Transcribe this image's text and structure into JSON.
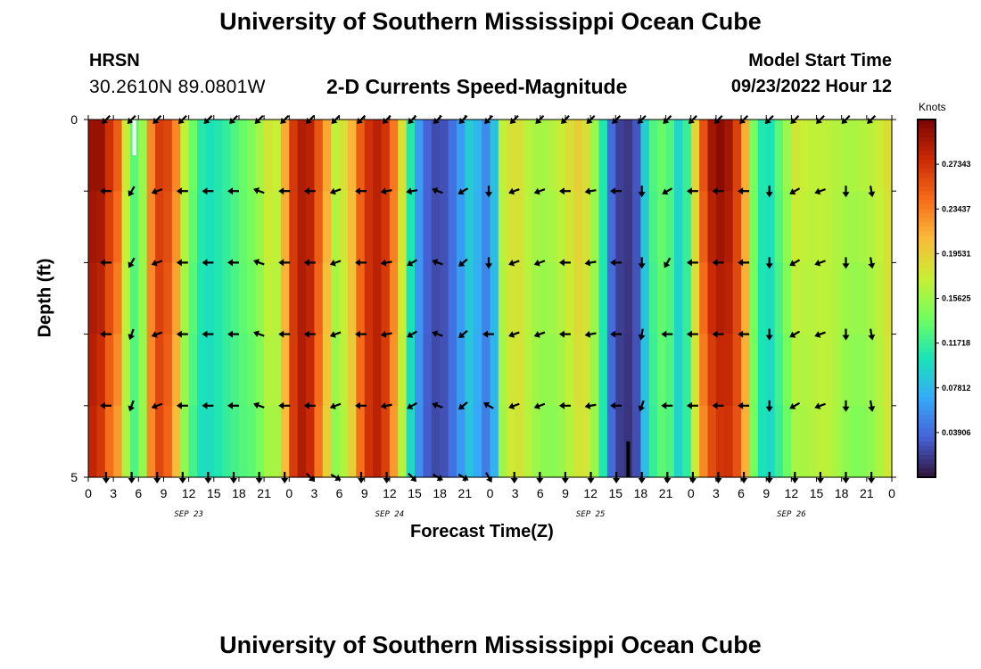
{
  "header": {
    "title": "University of Southern Mississippi Ocean Cube",
    "station": "HRSN",
    "coords": "30.2610N  89.0801W",
    "subtitle": "2-D Currents Speed-Magnitude",
    "start_label": "Model Start Time",
    "start_value": "09/23/2022 Hour 12"
  },
  "footer": {
    "title": "University of Southern Mississippi Ocean Cube"
  },
  "colors": {
    "arrow": "#000000",
    "palette": [
      "#30123b",
      "#4662d7",
      "#36aaf9",
      "#1ae4b6",
      "#72fe5e",
      "#c8ef34",
      "#faba39",
      "#f66b19",
      "#ca2a04",
      "#7a0403"
    ]
  },
  "chart_data": {
    "type": "heatmap",
    "title": "2-D Currents Speed-Magnitude",
    "xlabel": "Forecast Time(Z)",
    "ylabel": "Depth (ft)",
    "units": "Knots",
    "x_tick_labels": [
      "0",
      "3",
      "6",
      "9",
      "12",
      "15",
      "18",
      "21",
      "0",
      "3",
      "6",
      "9",
      "12",
      "15",
      "18",
      "21",
      "0",
      "3",
      "6",
      "9",
      "12",
      "15",
      "18",
      "21",
      "0",
      "3",
      "6",
      "9",
      "12",
      "15",
      "18",
      "21",
      "0"
    ],
    "date_labels": [
      "SEP 23",
      "SEP 24",
      "SEP 25",
      "SEP 26"
    ],
    "y_tick_labels": [
      "0",
      "5"
    ],
    "ylim": [
      0,
      5
    ],
    "depth_levels": 5,
    "time_steps": 96,
    "colorbar": {
      "range": [
        0,
        0.3125
      ],
      "tick_values": [
        0.03906,
        0.07812,
        0.11718,
        0.15625,
        0.19531,
        0.23437,
        0.27343
      ],
      "tick_labels": [
        "0.03906",
        "0.07812",
        "0.11718",
        "0.15625",
        "0.19531",
        "0.23437",
        "0.27343"
      ]
    },
    "speed_profile": [
      [
        0,
        0.3
      ],
      [
        1.5,
        0.3
      ],
      [
        3.5,
        0.25
      ],
      [
        5,
        0.14
      ],
      [
        6,
        0.12
      ],
      [
        7,
        0.19
      ],
      [
        8,
        0.27
      ],
      [
        10,
        0.26
      ],
      [
        11.5,
        0.17
      ],
      [
        13,
        0.12
      ],
      [
        14,
        0.1
      ],
      [
        16,
        0.11
      ],
      [
        18,
        0.13
      ],
      [
        20,
        0.15
      ],
      [
        21.5,
        0.18
      ],
      [
        23,
        0.17
      ],
      [
        24,
        0.26
      ],
      [
        26,
        0.3
      ],
      [
        28,
        0.24
      ],
      [
        29.5,
        0.17
      ],
      [
        31,
        0.19
      ],
      [
        33,
        0.27
      ],
      [
        35,
        0.29
      ],
      [
        37,
        0.22
      ],
      [
        38.5,
        0.11
      ],
      [
        40,
        0.04
      ],
      [
        42,
        0.02
      ],
      [
        44,
        0.05
      ],
      [
        45.5,
        0.09
      ],
      [
        47,
        0.07
      ],
      [
        48,
        0.04
      ],
      [
        49.5,
        0.17
      ],
      [
        51,
        0.19
      ],
      [
        53,
        0.16
      ],
      [
        55,
        0.16
      ],
      [
        57,
        0.18
      ],
      [
        59,
        0.2
      ],
      [
        61,
        0.14
      ],
      [
        62.5,
        0.04
      ],
      [
        64,
        0.01
      ],
      [
        65.5,
        0.03
      ],
      [
        67,
        0.12
      ],
      [
        69,
        0.14
      ],
      [
        71,
        0.08
      ],
      [
        72.5,
        0.19
      ],
      [
        74,
        0.29
      ],
      [
        76,
        0.31
      ],
      [
        78,
        0.25
      ],
      [
        79.5,
        0.14
      ],
      [
        81,
        0.09
      ],
      [
        82.5,
        0.13
      ],
      [
        84.5,
        0.18
      ],
      [
        86,
        0.17
      ],
      [
        88,
        0.17
      ],
      [
        91,
        0.16
      ],
      [
        94,
        0.17
      ],
      [
        96,
        0.19
      ]
    ],
    "arrow_angles_deg": [
      [
        135,
        135,
        135,
        135,
        135,
        135,
        135,
        135,
        135,
        135,
        135,
        135,
        135,
        135,
        135,
        135,
        135,
        135,
        135,
        135,
        135,
        135,
        135,
        135,
        135,
        135,
        135,
        135,
        135,
        135,
        135,
        135
      ],
      [
        180,
        120,
        160,
        180,
        180,
        180,
        200,
        180,
        180,
        160,
        180,
        170,
        170,
        200,
        150,
        90,
        160,
        160,
        180,
        170,
        180,
        90,
        150,
        180,
        180,
        180,
        90,
        150,
        160,
        90,
        80,
        90
      ],
      [
        180,
        120,
        160,
        180,
        180,
        180,
        200,
        180,
        180,
        160,
        180,
        170,
        150,
        200,
        140,
        90,
        160,
        160,
        180,
        170,
        180,
        90,
        120,
        180,
        180,
        180,
        90,
        150,
        160,
        90,
        80,
        90
      ],
      [
        180,
        110,
        160,
        180,
        180,
        180,
        200,
        180,
        180,
        160,
        180,
        170,
        150,
        200,
        140,
        180,
        160,
        160,
        180,
        170,
        180,
        100,
        180,
        180,
        180,
        180,
        90,
        150,
        160,
        90,
        80,
        90
      ],
      [
        180,
        110,
        160,
        180,
        180,
        180,
        200,
        180,
        180,
        160,
        180,
        170,
        150,
        200,
        140,
        210,
        160,
        160,
        180,
        170,
        180,
        110,
        180,
        180,
        180,
        180,
        90,
        150,
        160,
        90,
        80,
        90
      ],
      [
        90,
        90,
        90,
        90,
        90,
        90,
        90,
        90,
        45,
        30,
        90,
        90,
        45,
        30,
        30,
        60,
        90,
        90,
        90,
        90,
        90,
        90,
        90,
        90,
        90,
        90,
        90,
        90,
        90,
        90,
        90,
        90
      ]
    ],
    "markers": [
      {
        "label": "start-marker",
        "time_step": 5,
        "depth_from": 0,
        "depth_to": 0.5,
        "color": "#ffffff"
      },
      {
        "label": "current-marker",
        "time_step": 64,
        "depth_from": 4.5,
        "depth_to": 5,
        "color": "#000000"
      }
    ]
  }
}
